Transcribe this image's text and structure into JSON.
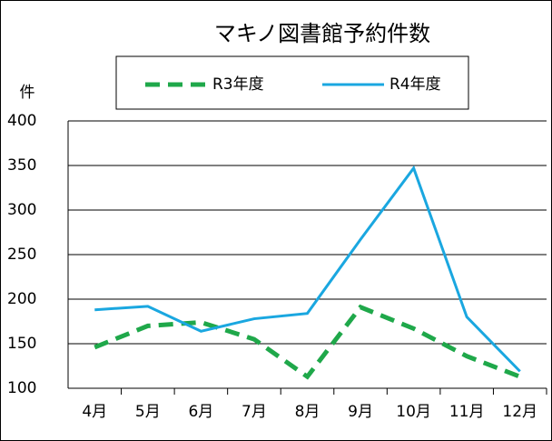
{
  "chart_data": {
    "type": "line",
    "title": "マキノ図書館予約件数",
    "y_label": "件",
    "categories": [
      "4月",
      "5月",
      "6月",
      "7月",
      "8月",
      "9月",
      "10月",
      "11月",
      "12月"
    ],
    "series": [
      {
        "name": "R3年度",
        "color": "#1fa84a",
        "dashed": true,
        "values": [
          146,
          170,
          174,
          155,
          113,
          191,
          167,
          136,
          113
        ]
      },
      {
        "name": "R4年度",
        "color": "#1aa7e0",
        "dashed": false,
        "values": [
          188,
          192,
          164,
          178,
          184,
          267,
          347,
          180,
          119
        ]
      }
    ],
    "ylim": [
      100,
      400
    ],
    "yticks": [
      100,
      150,
      200,
      250,
      300,
      350,
      400
    ],
    "grid": true
  }
}
